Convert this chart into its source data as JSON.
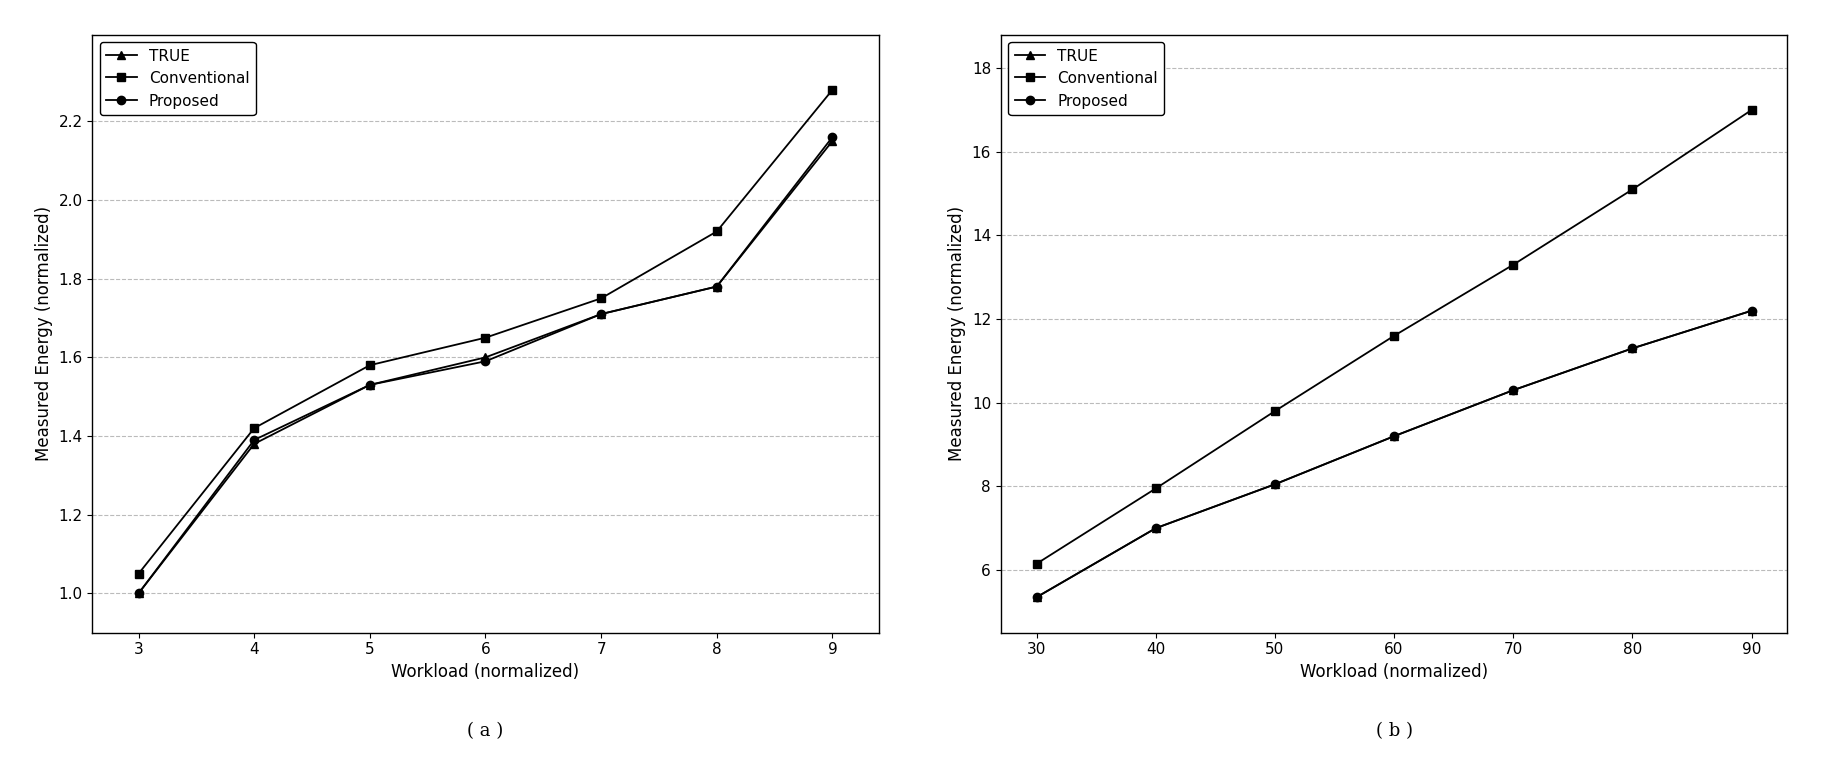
{
  "plot_a": {
    "x": [
      3,
      4,
      5,
      6,
      7,
      8,
      9
    ],
    "true": [
      1.0,
      1.38,
      1.53,
      1.6,
      1.71,
      1.78,
      2.15
    ],
    "conventional": [
      1.05,
      1.42,
      1.58,
      1.65,
      1.75,
      1.92,
      2.28
    ],
    "proposed": [
      1.0,
      1.39,
      1.53,
      1.59,
      1.71,
      1.78,
      2.16
    ],
    "xlabel": "Workload (normalized)",
    "ylabel": "Measured Energy (normalized)",
    "xlim": [
      2.6,
      9.4
    ],
    "ylim": [
      0.9,
      2.42
    ],
    "xticks": [
      3,
      4,
      5,
      6,
      7,
      8,
      9
    ],
    "yticks": [
      1.0,
      1.2,
      1.4,
      1.6,
      1.8,
      2.0,
      2.2
    ],
    "label": "( a )"
  },
  "plot_b": {
    "x": [
      30,
      40,
      50,
      60,
      70,
      80,
      90
    ],
    "true": [
      5.35,
      7.0,
      8.05,
      9.2,
      10.3,
      11.3,
      12.2
    ],
    "conventional": [
      6.15,
      7.95,
      9.8,
      11.6,
      13.3,
      15.1,
      17.0
    ],
    "proposed": [
      5.35,
      7.0,
      8.05,
      9.2,
      10.3,
      11.3,
      12.2
    ],
    "xlabel": "Workload (normalized)",
    "ylabel": "Measured Energy (normalized)",
    "xlim": [
      27,
      93
    ],
    "ylim": [
      4.5,
      18.8
    ],
    "xticks": [
      30,
      40,
      50,
      60,
      70,
      80,
      90
    ],
    "yticks": [
      6,
      8,
      10,
      12,
      14,
      16,
      18
    ],
    "label": "( b )"
  },
  "legend_labels": [
    "TRUE",
    "Conventional",
    "Proposed"
  ],
  "color": "#000000",
  "grid_color": "#bbbbbb",
  "grid_linestyle": "--",
  "marker_true": "^",
  "marker_conv": "s",
  "marker_prop": "o",
  "markersize": 6,
  "linewidth": 1.3,
  "fontsize_label": 12,
  "fontsize_tick": 11,
  "fontsize_legend": 11,
  "fontsize_sublabel": 13
}
